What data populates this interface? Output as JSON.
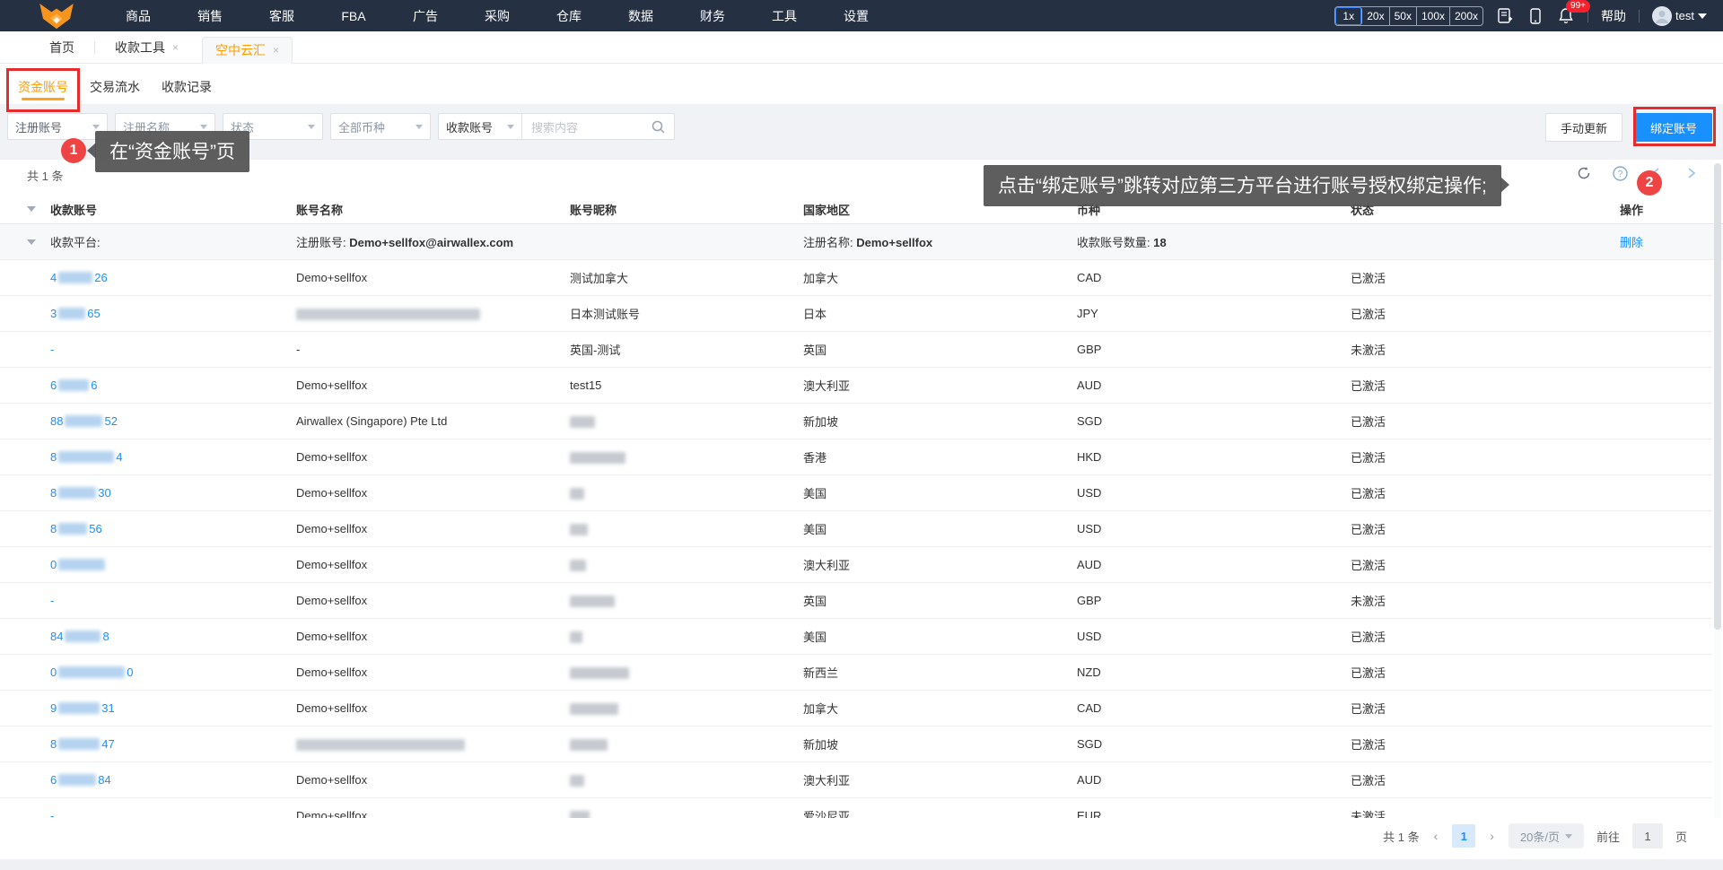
{
  "colors": {
    "nav_bg": "#263043",
    "accent_orange": "#ff9c00",
    "primary_blue": "#1890ff",
    "annotation_red": "#e42c2c"
  },
  "topnav": {
    "menu": [
      "商品",
      "销售",
      "客服",
      "FBA",
      "广告",
      "采购",
      "仓库",
      "数据",
      "财务",
      "工具",
      "设置"
    ],
    "zoom_levels": [
      "1x",
      "20x",
      "50x",
      "100x",
      "200x"
    ],
    "zoom_selected": "1x",
    "notification_badge": "99+",
    "help_label": "帮助",
    "user_name": "test"
  },
  "tabs": [
    {
      "label": "首页",
      "closable": false,
      "active": false
    },
    {
      "label": "收款工具",
      "closable": true,
      "active": false
    },
    {
      "label": "空中云汇",
      "closable": true,
      "active": true
    }
  ],
  "subtabs": [
    {
      "label": "资金账号",
      "active": true
    },
    {
      "label": "交易流水",
      "active": false
    },
    {
      "label": "收款记录",
      "active": false
    }
  ],
  "filters": {
    "dropdowns": [
      "注册账号",
      "注册名称",
      "状态",
      "全部币种"
    ],
    "search_category": "收款账号",
    "search_placeholder": "搜索内容",
    "manual_update_label": "手动更新",
    "bind_account_label": "绑定账号"
  },
  "toolbar": {
    "total_text": "共 1 条"
  },
  "annotations": {
    "step1": {
      "num": "1",
      "text": "在“资金账号”页"
    },
    "step2": {
      "num": "2",
      "text": "点击“绑定账号”跳转对应第三方平台进行账号授权绑定操作;"
    }
  },
  "table": {
    "headers": [
      "收款账号",
      "账号名称",
      "账号昵称",
      "国家地区",
      "币种",
      "状态",
      "操作"
    ],
    "group": {
      "platform_label": "收款平台:",
      "reg_account_label": "注册账号:",
      "reg_account": "Demo+sellfox@airwallex.com",
      "reg_name_label": "注册名称:",
      "reg_name": "Demo+sellfox",
      "count_label": "收款账号数量:",
      "count": "18",
      "delete_label": "删除"
    },
    "rows": [
      {
        "acct_pre": "4",
        "acct_blur": 38,
        "acct_suf": "26",
        "name": "Demo+sellfox",
        "name_blur": 0,
        "nick": "测试加拿大",
        "nick_blur": 0,
        "country": "加拿大",
        "currency": "CAD",
        "status": "已激活"
      },
      {
        "acct_pre": "3",
        "acct_blur": 30,
        "acct_suf": "65",
        "name": "",
        "name_blur": 205,
        "nick": "日本测试账号",
        "nick_blur": 0,
        "country": "日本",
        "currency": "JPY",
        "status": "已激活"
      },
      {
        "acct_pre": "-",
        "acct_blur": 0,
        "acct_suf": "",
        "name": "-",
        "name_blur": 0,
        "nick": "英国-测试",
        "nick_blur": 0,
        "country": "英国",
        "currency": "GBP",
        "status": "未激活"
      },
      {
        "acct_pre": "6",
        "acct_blur": 34,
        "acct_suf": "6",
        "name": "Demo+sellfox",
        "name_blur": 0,
        "nick": "test15",
        "nick_blur": 0,
        "country": "澳大利亚",
        "currency": "AUD",
        "status": "已激活"
      },
      {
        "acct_pre": "88",
        "acct_blur": 42,
        "acct_suf": "52",
        "name": "Airwallex (Singapore) Pte Ltd",
        "name_blur": 0,
        "nick": "",
        "nick_blur": 28,
        "country": "新加坡",
        "currency": "SGD",
        "status": "已激活"
      },
      {
        "acct_pre": "8",
        "acct_blur": 62,
        "acct_suf": "4",
        "name": "Demo+sellfox",
        "name_blur": 0,
        "nick": "",
        "nick_blur": 62,
        "country": "香港",
        "currency": "HKD",
        "status": "已激活"
      },
      {
        "acct_pre": "8",
        "acct_blur": 42,
        "acct_suf": "30",
        "name": "Demo+sellfox",
        "name_blur": 0,
        "nick": "",
        "nick_blur": 16,
        "country": "美国",
        "currency": "USD",
        "status": "已激活"
      },
      {
        "acct_pre": "8",
        "acct_blur": 32,
        "acct_suf": "56",
        "name": "Demo+sellfox",
        "name_blur": 0,
        "nick": "",
        "nick_blur": 20,
        "country": "美国",
        "currency": "USD",
        "status": "已激活"
      },
      {
        "acct_pre": "0",
        "acct_blur": 52,
        "acct_suf": "",
        "name": "Demo+sellfox",
        "name_blur": 0,
        "nick": "",
        "nick_blur": 18,
        "country": "澳大利亚",
        "currency": "AUD",
        "status": "已激活"
      },
      {
        "acct_pre": "-",
        "acct_blur": 0,
        "acct_suf": "",
        "name": "Demo+sellfox",
        "name_blur": 0,
        "nick": "",
        "nick_blur": 50,
        "country": "英国",
        "currency": "GBP",
        "status": "未激活"
      },
      {
        "acct_pre": "84",
        "acct_blur": 40,
        "acct_suf": "8",
        "name": "Demo+sellfox",
        "name_blur": 0,
        "nick": "",
        "nick_blur": 14,
        "country": "美国",
        "currency": "USD",
        "status": "已激活"
      },
      {
        "acct_pre": "0",
        "acct_blur": 74,
        "acct_suf": "0",
        "name": "Demo+sellfox",
        "name_blur": 0,
        "nick": "",
        "nick_blur": 66,
        "country": "新西兰",
        "currency": "NZD",
        "status": "已激活"
      },
      {
        "acct_pre": "9",
        "acct_blur": 46,
        "acct_suf": "31",
        "name": "Demo+sellfox",
        "name_blur": 0,
        "nick": "",
        "nick_blur": 54,
        "country": "加拿大",
        "currency": "CAD",
        "status": "已激活"
      },
      {
        "acct_pre": "8",
        "acct_blur": 46,
        "acct_suf": "47",
        "name": "",
        "name_blur": 188,
        "nick": "",
        "nick_blur": 42,
        "country": "新加坡",
        "currency": "SGD",
        "status": "已激活"
      },
      {
        "acct_pre": "6",
        "acct_blur": 42,
        "acct_suf": "84",
        "name": "Demo+sellfox",
        "name_blur": 0,
        "nick": "",
        "nick_blur": 16,
        "country": "澳大利亚",
        "currency": "AUD",
        "status": "已激活"
      },
      {
        "acct_pre": "-",
        "acct_blur": 0,
        "acct_suf": "",
        "name": "Demo+sellfox",
        "name_blur": 0,
        "nick": "",
        "nick_blur": 22,
        "country": "爱沙尼亚",
        "currency": "EUR",
        "status": "未激活"
      }
    ]
  },
  "pagination": {
    "total_text": "共 1 条",
    "prev": "‹",
    "next": "›",
    "current_page": "1",
    "page_size": "20条/页",
    "goto_label": "前往",
    "goto_value": "1",
    "page_suffix": "页"
  }
}
